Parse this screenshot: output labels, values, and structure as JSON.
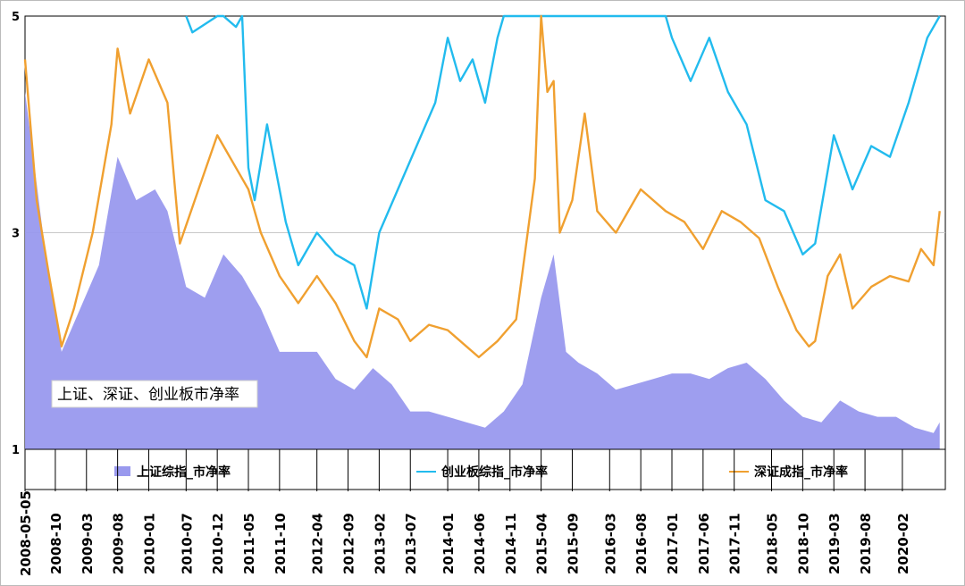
{
  "chart_data": {
    "type": "area",
    "title": "上证、深证、创业板市净率",
    "xlabel": "",
    "ylabel": "",
    "ylim": [
      1,
      5
    ],
    "y_ticks": [
      1,
      3,
      5
    ],
    "x_tick_labels": [
      "2008-05-05",
      "2008-10",
      "2009-03",
      "2009-08",
      "2010-01",
      "2010-07",
      "2010-12",
      "2011-05",
      "2011-10",
      "2012-04",
      "2012-09",
      "2013-02",
      "2013-07",
      "2014-01",
      "2014-06",
      "2014-11",
      "2015-04",
      "2015-09",
      "2016-03",
      "2016-08",
      "2017-01",
      "2017-06",
      "2017-11",
      "2018-05",
      "2018-10",
      "2019-03",
      "2019-08",
      "2020-02"
    ],
    "x_range": [
      "2008-05-05",
      "2020-08"
    ],
    "grid": "horizontal",
    "legend_position": "bottom",
    "series": [
      {
        "name": "上证综指_市净率",
        "type": "area",
        "color": "#9999ee",
        "x": [
          "2008-05",
          "2008-08",
          "2008-11",
          "2009-02",
          "2009-05",
          "2009-08",
          "2009-11",
          "2010-02",
          "2010-04",
          "2010-07",
          "2010-10",
          "2011-01",
          "2011-04",
          "2011-07",
          "2011-10",
          "2012-01",
          "2012-04",
          "2012-07",
          "2012-10",
          "2013-01",
          "2013-04",
          "2013-07",
          "2013-10",
          "2014-01",
          "2014-04",
          "2014-07",
          "2014-10",
          "2015-01",
          "2015-04",
          "2015-06",
          "2015-08",
          "2015-10",
          "2016-01",
          "2016-04",
          "2016-07",
          "2016-10",
          "2017-01",
          "2017-04",
          "2017-07",
          "2017-10",
          "2018-01",
          "2018-04",
          "2018-07",
          "2018-10",
          "2019-01",
          "2019-04",
          "2019-07",
          "2019-10",
          "2020-01",
          "2020-04",
          "2020-07",
          "2020-08"
        ],
        "values": [
          4.3,
          3.0,
          1.9,
          2.3,
          2.7,
          3.7,
          3.3,
          3.4,
          3.2,
          2.5,
          2.4,
          2.8,
          2.6,
          2.3,
          1.9,
          1.9,
          1.9,
          1.65,
          1.55,
          1.75,
          1.6,
          1.35,
          1.35,
          1.3,
          1.25,
          1.2,
          1.35,
          1.6,
          2.4,
          2.8,
          1.9,
          1.8,
          1.7,
          1.55,
          1.6,
          1.65,
          1.7,
          1.7,
          1.65,
          1.75,
          1.8,
          1.65,
          1.45,
          1.3,
          1.25,
          1.45,
          1.35,
          1.3,
          1.3,
          1.2,
          1.15,
          1.25
        ]
      },
      {
        "name": "创业板综指_市净率",
        "type": "line",
        "color": "#22bbee",
        "x": [
          "2010-07",
          "2010-08",
          "2010-12",
          "2011-01",
          "2011-03",
          "2011-04",
          "2011-05",
          "2011-06",
          "2011-08",
          "2011-11",
          "2012-01",
          "2012-04",
          "2012-07",
          "2012-10",
          "2012-12",
          "2013-02",
          "2013-05",
          "2013-08",
          "2013-11",
          "2014-01",
          "2014-03",
          "2014-05",
          "2014-07",
          "2014-09",
          "2014-10",
          "2016-12",
          "2017-01",
          "2017-04",
          "2017-07",
          "2017-10",
          "2018-01",
          "2018-04",
          "2018-07",
          "2018-10",
          "2018-12",
          "2019-03",
          "2019-06",
          "2019-09",
          "2019-12",
          "2020-03",
          "2020-06",
          "2020-08"
        ],
        "values": [
          5.0,
          4.85,
          5.0,
          5.0,
          4.9,
          5.0,
          3.6,
          3.3,
          4.0,
          3.1,
          2.7,
          3.0,
          2.8,
          2.7,
          2.3,
          3.0,
          3.4,
          3.8,
          4.2,
          4.8,
          4.4,
          4.6,
          4.2,
          4.8,
          5.0,
          5.0,
          4.8,
          4.4,
          4.8,
          4.3,
          4.0,
          3.3,
          3.2,
          2.8,
          2.9,
          3.9,
          3.4,
          3.8,
          3.7,
          4.2,
          4.8,
          5.0
        ]
      },
      {
        "name": "深证成指_市净率",
        "type": "line",
        "color": "#f0a030",
        "x": [
          "2008-05",
          "2008-07",
          "2008-09",
          "2008-11",
          "2009-01",
          "2009-04",
          "2009-07",
          "2009-08",
          "2009-10",
          "2010-01",
          "2010-04",
          "2010-06",
          "2010-09",
          "2010-12",
          "2011-03",
          "2011-05",
          "2011-07",
          "2011-10",
          "2012-01",
          "2012-04",
          "2012-07",
          "2012-10",
          "2012-12",
          "2013-02",
          "2013-05",
          "2013-07",
          "2013-10",
          "2014-01",
          "2014-04",
          "2014-06",
          "2014-09",
          "2014-12",
          "2015-03",
          "2015-04",
          "2015-05",
          "2015-06",
          "2015-07",
          "2015-09",
          "2015-11",
          "2016-01",
          "2016-04",
          "2016-08",
          "2016-12",
          "2017-03",
          "2017-06",
          "2017-09",
          "2017-12",
          "2018-03",
          "2018-06",
          "2018-09",
          "2018-11",
          "2018-12",
          "2019-02",
          "2019-04",
          "2019-06",
          "2019-09",
          "2019-12",
          "2020-03",
          "2020-05",
          "2020-07",
          "2020-08"
        ],
        "values": [
          4.6,
          3.3,
          2.6,
          1.95,
          2.3,
          3.0,
          4.0,
          4.7,
          4.1,
          4.6,
          4.2,
          2.9,
          3.4,
          3.9,
          3.6,
          3.4,
          3.0,
          2.6,
          2.35,
          2.6,
          2.35,
          2.0,
          1.85,
          2.3,
          2.2,
          2.0,
          2.15,
          2.1,
          1.95,
          1.85,
          2.0,
          2.2,
          3.5,
          5.0,
          4.3,
          4.4,
          3.0,
          3.3,
          4.1,
          3.2,
          3.0,
          3.4,
          3.2,
          3.1,
          2.85,
          3.2,
          3.1,
          2.95,
          2.5,
          2.1,
          1.95,
          2.0,
          2.6,
          2.8,
          2.3,
          2.5,
          2.6,
          2.55,
          2.85,
          2.7,
          3.2
        ]
      }
    ]
  }
}
